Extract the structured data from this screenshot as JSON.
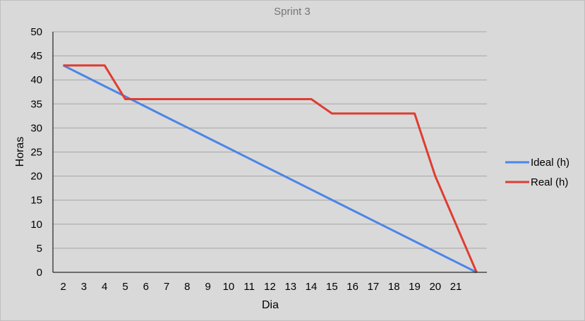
{
  "chart_data": {
    "type": "line",
    "title": "Sprint 3",
    "xlabel": "Dia",
    "ylabel": "Horas",
    "categories": [
      "2",
      "3",
      "4",
      "5",
      "6",
      "7",
      "8",
      "9",
      "10",
      "11",
      "12",
      "13",
      "14",
      "15",
      "16",
      "17",
      "18",
      "19",
      "20",
      "21",
      ""
    ],
    "ylim": [
      0,
      50
    ],
    "yticks": [
      0,
      5,
      10,
      15,
      20,
      25,
      30,
      35,
      40,
      45,
      50
    ],
    "grid": true,
    "legend_position": "right",
    "series": [
      {
        "name": "Ideal (h)",
        "color": "#4a86e8",
        "values": [
          43,
          40.85,
          38.7,
          36.55,
          34.4,
          32.25,
          30.1,
          27.95,
          25.8,
          23.65,
          21.5,
          19.35,
          17.2,
          15.05,
          12.9,
          10.75,
          8.6,
          6.45,
          4.3,
          2.15,
          0
        ]
      },
      {
        "name": "Real (h)",
        "color": "#e03c31",
        "values": [
          43,
          43,
          43,
          36,
          36,
          36,
          36,
          36,
          36,
          36,
          36,
          36,
          36,
          33,
          33,
          33,
          33,
          33,
          20,
          10,
          0
        ]
      }
    ]
  }
}
